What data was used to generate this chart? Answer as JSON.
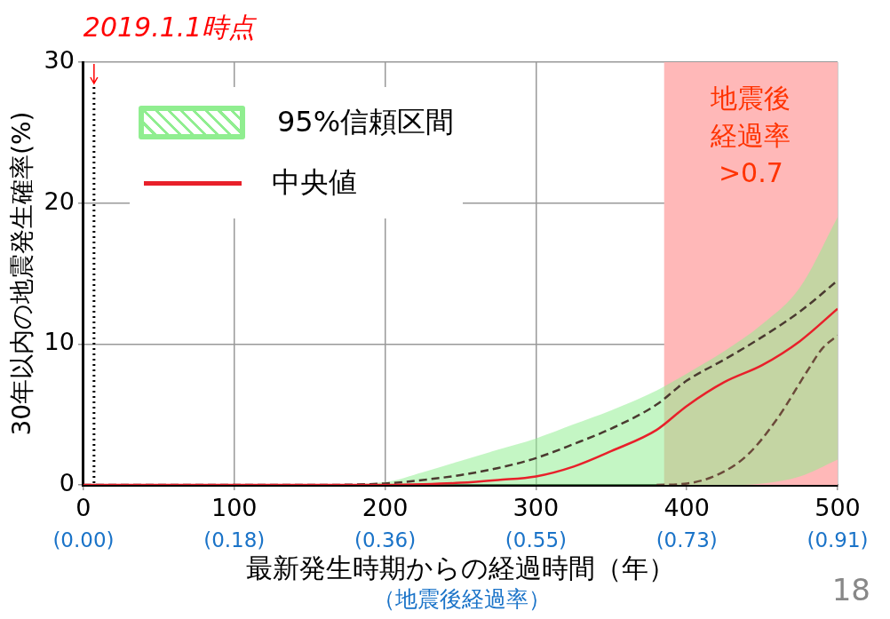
{
  "chart_data": {
    "type": "line",
    "xlabel": "最新発生時期からの経過時間（年）",
    "x2label": "（地震後経過率）",
    "ylabel": "30年以内の地震発生確率(%)",
    "xlim": [
      0,
      500
    ],
    "xticks": [
      0,
      100,
      200,
      300,
      400,
      500
    ],
    "x2lim": [
      0,
      0.9091
    ],
    "x2ticks": [
      {
        "value": 0,
        "label": "(0.00)"
      },
      {
        "value": 0.1818,
        "label": "(0.18)"
      },
      {
        "value": 0.3636,
        "label": "(0.36)"
      },
      {
        "value": 0.5455,
        "label": "(0.55)"
      },
      {
        "value": 0.7273,
        "label": "(0.73)"
      },
      {
        "value": 0.9091,
        "label": "(0.91)"
      }
    ],
    "ylim": [
      0,
      30
    ],
    "yticks": [
      0,
      10,
      20,
      30
    ],
    "grid": true,
    "legend": "top left",
    "marker": "none",
    "series": [
      {
        "name": "95%信頼区間",
        "color": "#4a3a30",
        "line_style": "dashed",
        "x": [
          0,
          100,
          150,
          200,
          225,
          250,
          275,
          300,
          325,
          350,
          380,
          400,
          425,
          450,
          475,
          500
        ],
        "values": [
          0,
          0,
          0,
          0.1,
          0.35,
          0.7,
          1.2,
          1.9,
          2.9,
          4.0,
          5.7,
          7.4,
          8.9,
          10.5,
          12.3,
          14.5
        ],
        "lower": [
          0,
          0,
          0,
          0,
          0,
          0,
          0,
          0,
          0,
          0,
          0,
          0,
          0,
          0.1,
          0.6,
          1.8
        ],
        "upper": [
          0,
          0,
          0,
          0.2,
          0.9,
          1.7,
          2.5,
          3.3,
          4.3,
          5.3,
          6.7,
          7.9,
          9.5,
          11.4,
          14.0,
          19.0
        ]
      },
      {
        "color": "#6b4a3a",
        "line_style": "dashed",
        "x": [
          380,
          400,
          420,
          440,
          460,
          480,
          490,
          500
        ],
        "values": [
          0,
          0.1,
          0.7,
          2.1,
          4.7,
          8.1,
          9.7,
          10.6
        ]
      },
      {
        "name": "中央値",
        "color": "#e8202a",
        "line_style": "solid",
        "x": [
          0,
          100,
          150,
          200,
          225,
          250,
          275,
          300,
          325,
          350,
          380,
          400,
          425,
          450,
          475,
          500
        ],
        "values": [
          0,
          0,
          0,
          0,
          0.05,
          0.15,
          0.35,
          0.6,
          1.3,
          2.4,
          3.9,
          5.6,
          7.3,
          8.5,
          10.2,
          12.5
        ]
      }
    ],
    "bands": [
      {
        "axis": "x",
        "from": 385,
        "to": 500,
        "label": "地震後経過率>0.7",
        "color": "#ffb8b8"
      }
    ],
    "ref_lines": [
      {
        "axis": "x",
        "value": 7,
        "label": "2019.1.1時点",
        "line_style": "dotted",
        "color": "#000000"
      }
    ],
    "annotations": [
      "18"
    ]
  }
}
